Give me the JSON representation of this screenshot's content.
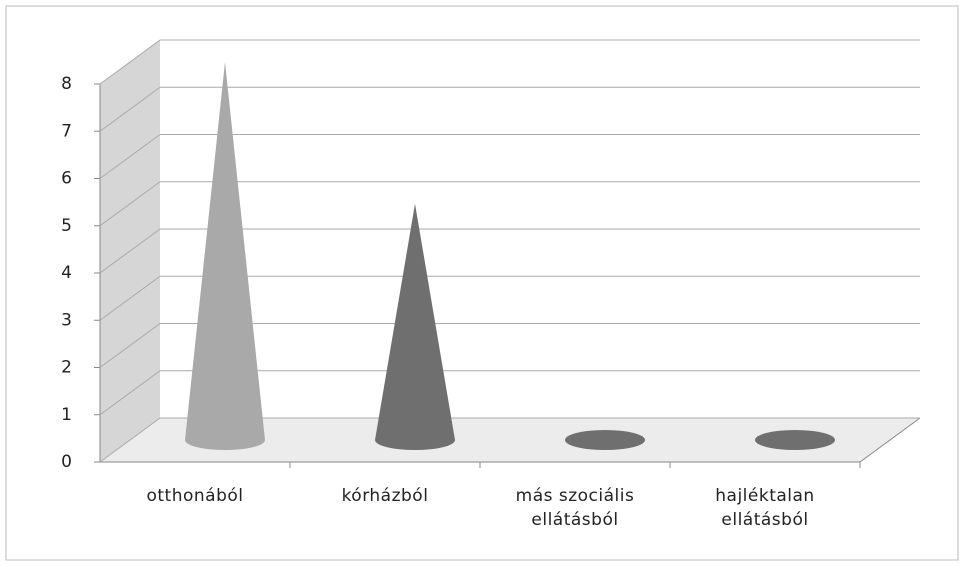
{
  "chart_data": {
    "type": "cone3d",
    "categories": [
      "otthonából",
      "kórházból",
      "más szociális ellátásból",
      "hajléktalan ellátásból"
    ],
    "values": [
      8,
      5,
      0,
      0
    ],
    "colors": [
      "#a9a9a9",
      "#6f6f6f",
      "#6f6f6f",
      "#6f6f6f"
    ],
    "ylim": [
      0,
      8
    ],
    "yticks": [
      0,
      1,
      2,
      3,
      4,
      5,
      6,
      7,
      8
    ],
    "grid": true
  }
}
